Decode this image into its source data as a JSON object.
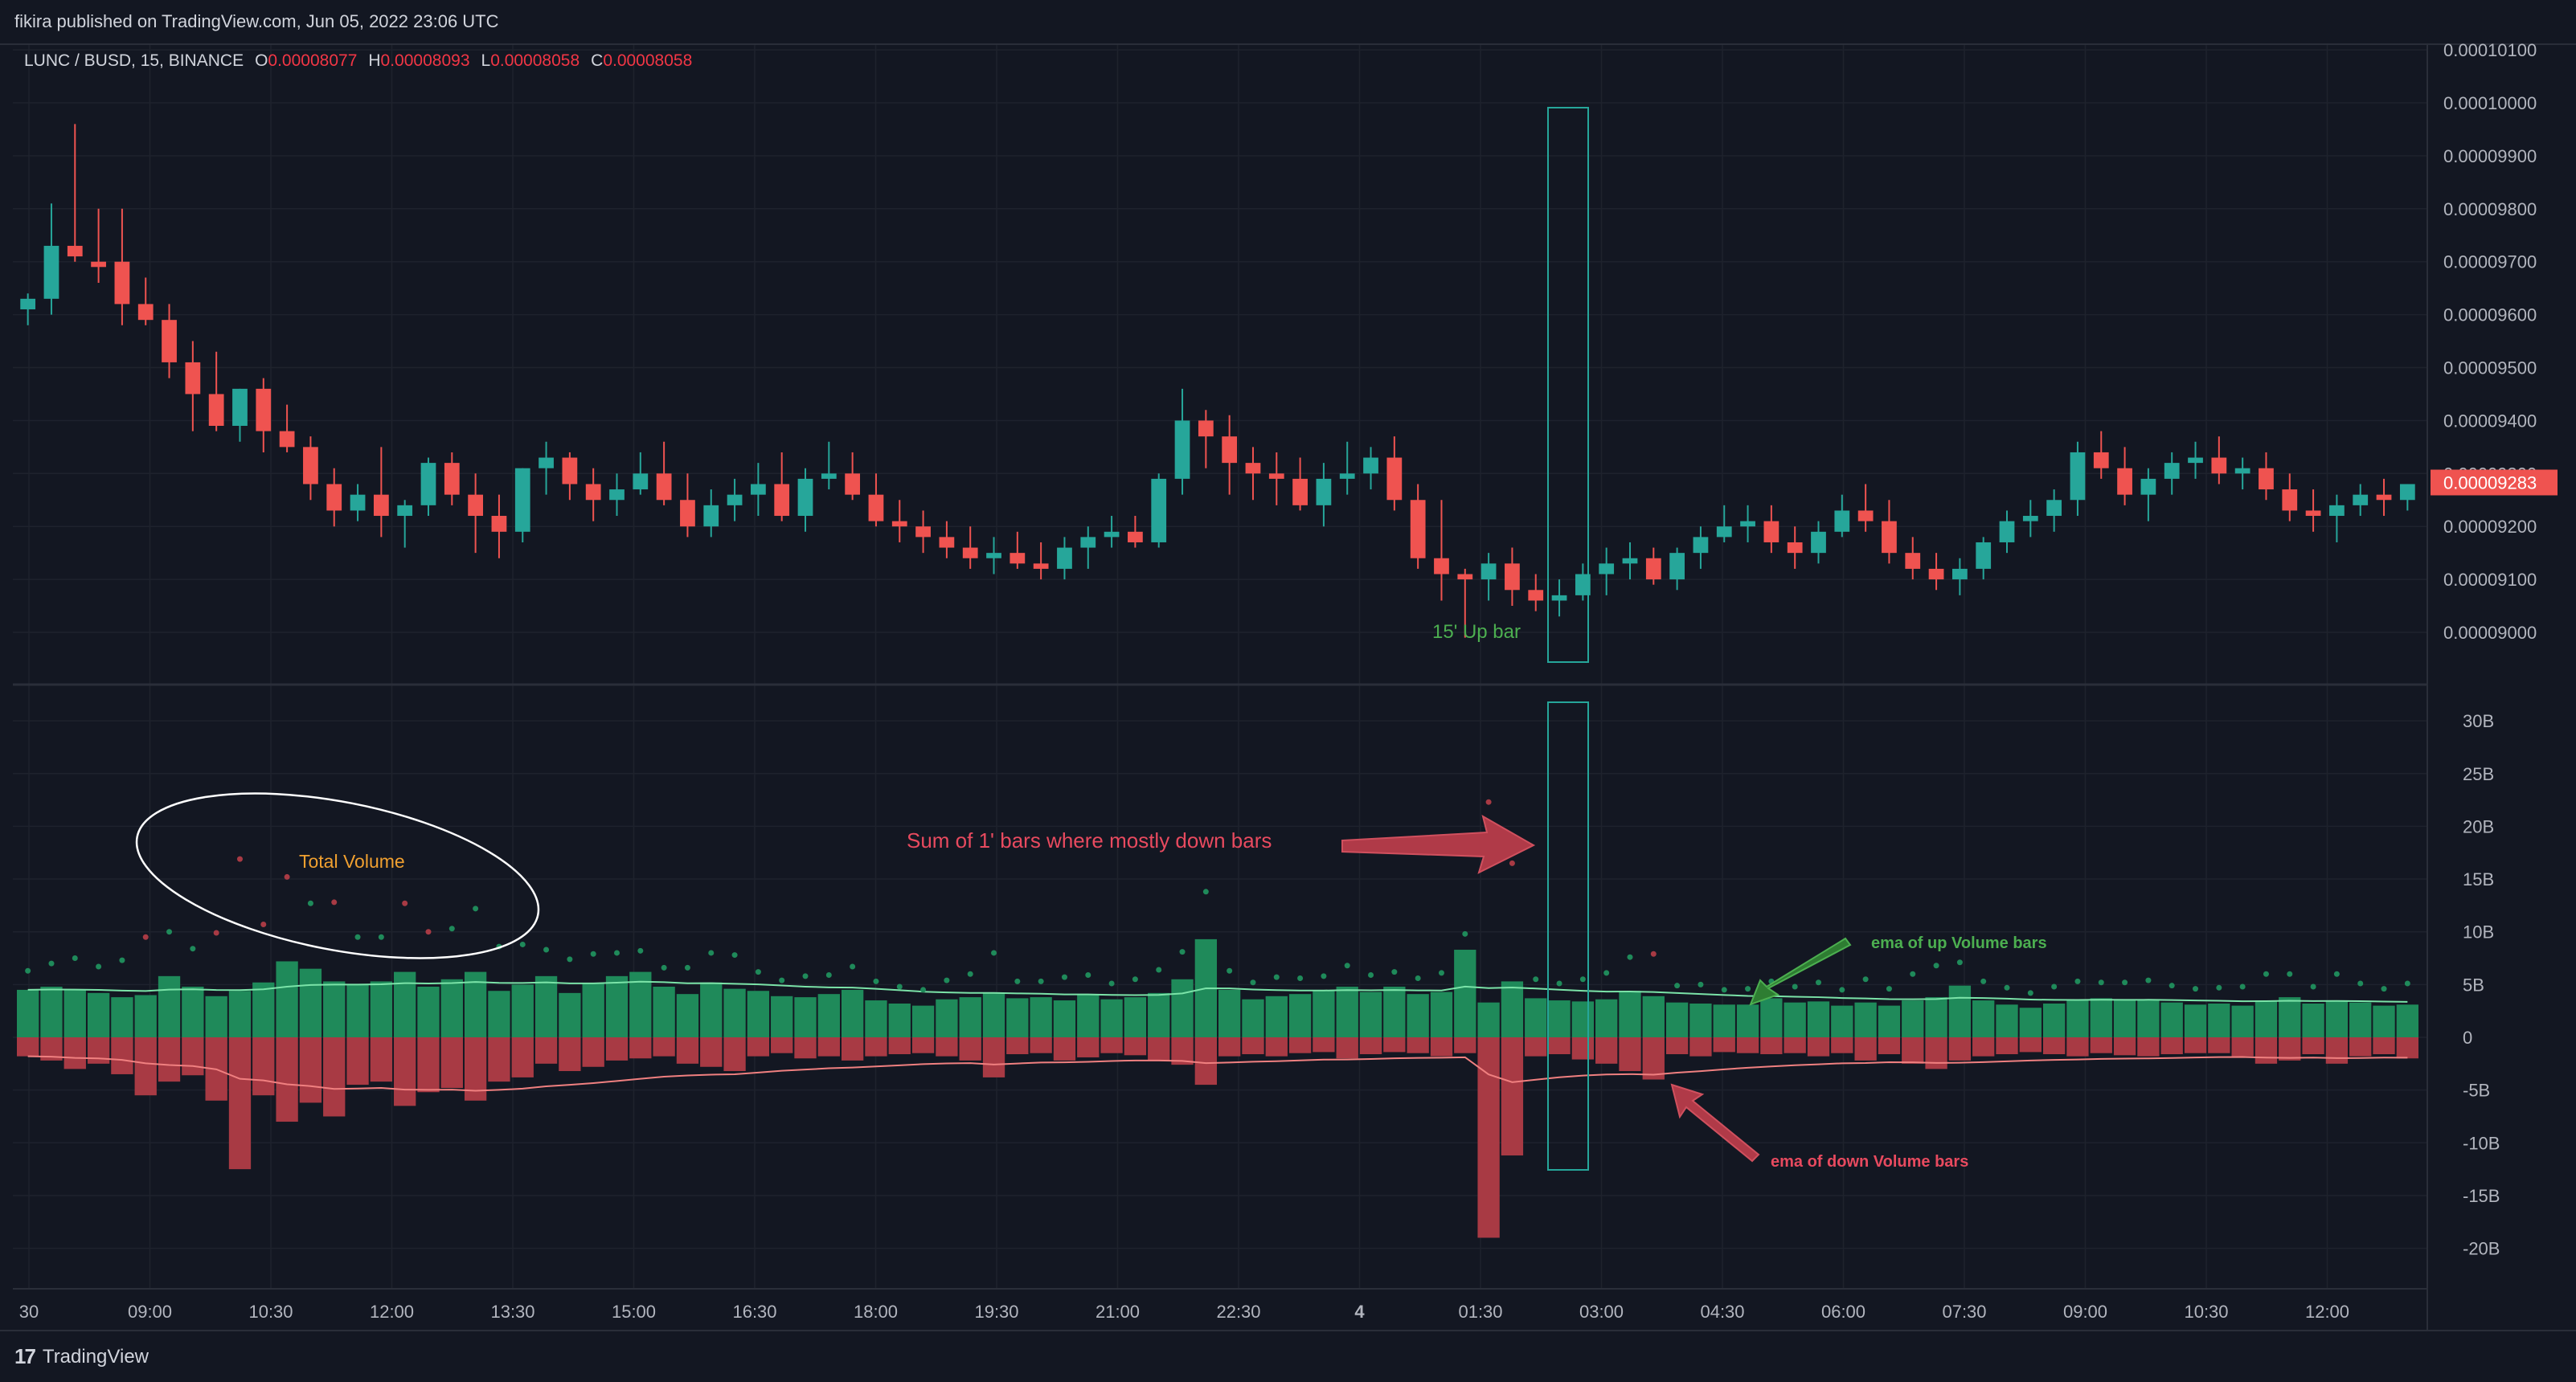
{
  "header": {
    "published": "fikira published on TradingView.com, Jun 05, 2022 23:06 UTC"
  },
  "legend": {
    "symbol": "LUNC / BUSD, 15, BINANCE",
    "o_label": "O",
    "o_value": "0.00008077",
    "h_label": "H",
    "h_value": "0.00008093",
    "l_label": "L",
    "l_value": "0.00008058",
    "c_label": "C",
    "c_value": "0.00008058"
  },
  "footer": {
    "logo": "17",
    "brand": "TradingView"
  },
  "colors": {
    "up": "#26a69a",
    "down": "#ef5350",
    "vol_up": "#1f8a5a",
    "vol_down": "#a83a44",
    "bg": "#131722",
    "grid": "#1e222d"
  },
  "chart_data": [
    {
      "type": "candlestick",
      "title": "LUNC / BUSD, 15, BINANCE",
      "y_ticks": [
        "0.00010100",
        "0.00010000",
        "0.00009900",
        "0.00009800",
        "0.00009700",
        "0.00009600",
        "0.00009500",
        "0.00009400",
        "0.00009300",
        "0.00009200",
        "0.00009100",
        "0.00009000"
      ],
      "ylim": [
        8.91e-05,
        0.0001015
      ],
      "last_price": "0.00009283",
      "annotation_up_bar": "15' Up bar",
      "candles": [
        [
          9.61e-05,
          9.64e-05,
          9.58e-05,
          9.63e-05
        ],
        [
          9.63e-05,
          9.81e-05,
          9.6e-05,
          9.73e-05
        ],
        [
          9.73e-05,
          9.96e-05,
          9.7e-05,
          9.71e-05
        ],
        [
          9.7e-05,
          9.8e-05,
          9.66e-05,
          9.69e-05
        ],
        [
          9.7e-05,
          9.8e-05,
          9.58e-05,
          9.62e-05
        ],
        [
          9.62e-05,
          9.67e-05,
          9.58e-05,
          9.59e-05
        ],
        [
          9.59e-05,
          9.62e-05,
          9.48e-05,
          9.51e-05
        ],
        [
          9.51e-05,
          9.55e-05,
          9.38e-05,
          9.45e-05
        ],
        [
          9.45e-05,
          9.53e-05,
          9.38e-05,
          9.39e-05
        ],
        [
          9.39e-05,
          9.46e-05,
          9.36e-05,
          9.46e-05
        ],
        [
          9.46e-05,
          9.48e-05,
          9.34e-05,
          9.38e-05
        ],
        [
          9.38e-05,
          9.43e-05,
          9.34e-05,
          9.35e-05
        ],
        [
          9.35e-05,
          9.37e-05,
          9.25e-05,
          9.28e-05
        ],
        [
          9.28e-05,
          9.31e-05,
          9.2e-05,
          9.23e-05
        ],
        [
          9.23e-05,
          9.28e-05,
          9.21e-05,
          9.26e-05
        ],
        [
          9.26e-05,
          9.35e-05,
          9.18e-05,
          9.22e-05
        ],
        [
          9.22e-05,
          9.25e-05,
          9.16e-05,
          9.24e-05
        ],
        [
          9.24e-05,
          9.33e-05,
          9.22e-05,
          9.32e-05
        ],
        [
          9.32e-05,
          9.34e-05,
          9.24e-05,
          9.26e-05
        ],
        [
          9.26e-05,
          9.3e-05,
          9.15e-05,
          9.22e-05
        ],
        [
          9.22e-05,
          9.26e-05,
          9.14e-05,
          9.19e-05
        ],
        [
          9.19e-05,
          9.31e-05,
          9.17e-05,
          9.31e-05
        ],
        [
          9.31e-05,
          9.36e-05,
          9.26e-05,
          9.33e-05
        ],
        [
          9.33e-05,
          9.34e-05,
          9.25e-05,
          9.28e-05
        ],
        [
          9.28e-05,
          9.31e-05,
          9.21e-05,
          9.25e-05
        ],
        [
          9.25e-05,
          9.3e-05,
          9.22e-05,
          9.27e-05
        ],
        [
          9.27e-05,
          9.34e-05,
          9.26e-05,
          9.3e-05
        ],
        [
          9.3e-05,
          9.36e-05,
          9.24e-05,
          9.25e-05
        ],
        [
          9.25e-05,
          9.3e-05,
          9.18e-05,
          9.2e-05
        ],
        [
          9.2e-05,
          9.27e-05,
          9.18e-05,
          9.24e-05
        ],
        [
          9.24e-05,
          9.29e-05,
          9.21e-05,
          9.26e-05
        ],
        [
          9.26e-05,
          9.32e-05,
          9.22e-05,
          9.28e-05
        ],
        [
          9.28e-05,
          9.34e-05,
          9.21e-05,
          9.22e-05
        ],
        [
          9.22e-05,
          9.31e-05,
          9.19e-05,
          9.29e-05
        ],
        [
          9.29e-05,
          9.36e-05,
          9.27e-05,
          9.3e-05
        ],
        [
          9.3e-05,
          9.34e-05,
          9.25e-05,
          9.26e-05
        ],
        [
          9.26e-05,
          9.3e-05,
          9.2e-05,
          9.21e-05
        ],
        [
          9.21e-05,
          9.25e-05,
          9.17e-05,
          9.2e-05
        ],
        [
          9.2e-05,
          9.23e-05,
          9.15e-05,
          9.18e-05
        ],
        [
          9.18e-05,
          9.21e-05,
          9.14e-05,
          9.16e-05
        ],
        [
          9.16e-05,
          9.2e-05,
          9.12e-05,
          9.14e-05
        ],
        [
          9.14e-05,
          9.18e-05,
          9.11e-05,
          9.15e-05
        ],
        [
          9.15e-05,
          9.19e-05,
          9.12e-05,
          9.13e-05
        ],
        [
          9.13e-05,
          9.17e-05,
          9.1e-05,
          9.12e-05
        ],
        [
          9.12e-05,
          9.18e-05,
          9.1e-05,
          9.16e-05
        ],
        [
          9.16e-05,
          9.2e-05,
          9.12e-05,
          9.18e-05
        ],
        [
          9.18e-05,
          9.22e-05,
          9.16e-05,
          9.19e-05
        ],
        [
          9.19e-05,
          9.22e-05,
          9.16e-05,
          9.17e-05
        ],
        [
          9.17e-05,
          9.3e-05,
          9.16e-05,
          9.29e-05
        ],
        [
          9.29e-05,
          9.46e-05,
          9.26e-05,
          9.4e-05
        ],
        [
          9.4e-05,
          9.42e-05,
          9.31e-05,
          9.37e-05
        ],
        [
          9.37e-05,
          9.41e-05,
          9.26e-05,
          9.32e-05
        ],
        [
          9.32e-05,
          9.35e-05,
          9.25e-05,
          9.3e-05
        ],
        [
          9.3e-05,
          9.34e-05,
          9.24e-05,
          9.29e-05
        ],
        [
          9.29e-05,
          9.33e-05,
          9.23e-05,
          9.24e-05
        ],
        [
          9.24e-05,
          9.32e-05,
          9.2e-05,
          9.29e-05
        ],
        [
          9.29e-05,
          9.36e-05,
          9.26e-05,
          9.3e-05
        ],
        [
          9.3e-05,
          9.35e-05,
          9.27e-05,
          9.33e-05
        ],
        [
          9.33e-05,
          9.37e-05,
          9.23e-05,
          9.25e-05
        ],
        [
          9.25e-05,
          9.28e-05,
          9.12e-05,
          9.14e-05
        ],
        [
          9.14e-05,
          9.25e-05,
          9.06e-05,
          9.11e-05
        ],
        [
          9.11e-05,
          9.12e-05,
          8.99e-05,
          9.1e-05
        ],
        [
          9.1e-05,
          9.15e-05,
          9.06e-05,
          9.13e-05
        ],
        [
          9.13e-05,
          9.16e-05,
          9.05e-05,
          9.08e-05
        ],
        [
          9.08e-05,
          9.11e-05,
          9.04e-05,
          9.06e-05
        ],
        [
          9.06e-05,
          9.1e-05,
          9.03e-05,
          9.07e-05
        ],
        [
          9.07e-05,
          9.13e-05,
          9.06e-05,
          9.11e-05
        ],
        [
          9.11e-05,
          9.16e-05,
          9.07e-05,
          9.13e-05
        ],
        [
          9.13e-05,
          9.17e-05,
          9.1e-05,
          9.14e-05
        ],
        [
          9.14e-05,
          9.16e-05,
          9.09e-05,
          9.1e-05
        ],
        [
          9.1e-05,
          9.16e-05,
          9.08e-05,
          9.15e-05
        ],
        [
          9.15e-05,
          9.2e-05,
          9.12e-05,
          9.18e-05
        ],
        [
          9.18e-05,
          9.24e-05,
          9.17e-05,
          9.2e-05
        ],
        [
          9.2e-05,
          9.24e-05,
          9.17e-05,
          9.21e-05
        ],
        [
          9.21e-05,
          9.24e-05,
          9.15e-05,
          9.17e-05
        ],
        [
          9.17e-05,
          9.2e-05,
          9.12e-05,
          9.15e-05
        ],
        [
          9.15e-05,
          9.21e-05,
          9.13e-05,
          9.19e-05
        ],
        [
          9.19e-05,
          9.26e-05,
          9.18e-05,
          9.23e-05
        ],
        [
          9.23e-05,
          9.28e-05,
          9.19e-05,
          9.21e-05
        ],
        [
          9.21e-05,
          9.25e-05,
          9.13e-05,
          9.15e-05
        ],
        [
          9.15e-05,
          9.18e-05,
          9.1e-05,
          9.12e-05
        ],
        [
          9.12e-05,
          9.15e-05,
          9.08e-05,
          9.1e-05
        ],
        [
          9.1e-05,
          9.14e-05,
          9.07e-05,
          9.12e-05
        ],
        [
          9.12e-05,
          9.18e-05,
          9.1e-05,
          9.17e-05
        ],
        [
          9.17e-05,
          9.23e-05,
          9.15e-05,
          9.21e-05
        ],
        [
          9.21e-05,
          9.25e-05,
          9.18e-05,
          9.22e-05
        ],
        [
          9.22e-05,
          9.27e-05,
          9.19e-05,
          9.25e-05
        ],
        [
          9.25e-05,
          9.36e-05,
          9.22e-05,
          9.34e-05
        ],
        [
          9.34e-05,
          9.38e-05,
          9.29e-05,
          9.31e-05
        ],
        [
          9.31e-05,
          9.35e-05,
          9.24e-05,
          9.26e-05
        ],
        [
          9.26e-05,
          9.31e-05,
          9.21e-05,
          9.29e-05
        ],
        [
          9.29e-05,
          9.34e-05,
          9.26e-05,
          9.32e-05
        ],
        [
          9.32e-05,
          9.36e-05,
          9.29e-05,
          9.33e-05
        ],
        [
          9.33e-05,
          9.37e-05,
          9.28e-05,
          9.3e-05
        ],
        [
          9.3e-05,
          9.33e-05,
          9.27e-05,
          9.31e-05
        ],
        [
          9.31e-05,
          9.34e-05,
          9.25e-05,
          9.27e-05
        ],
        [
          9.27e-05,
          9.3e-05,
          9.21e-05,
          9.23e-05
        ],
        [
          9.23e-05,
          9.27e-05,
          9.19e-05,
          9.22e-05
        ],
        [
          9.22e-05,
          9.26e-05,
          9.17e-05,
          9.24e-05
        ],
        [
          9.24e-05,
          9.28e-05,
          9.22e-05,
          9.26e-05
        ],
        [
          9.26e-05,
          9.29e-05,
          9.22e-05,
          9.25e-05
        ],
        [
          9.25e-05,
          9.28e-05,
          9.23e-05,
          9.28e-05
        ]
      ]
    },
    {
      "type": "bar",
      "title": "",
      "y_ticks": [
        "30B",
        "25B",
        "20B",
        "15B",
        "10B",
        "5B",
        "0",
        "-5B",
        "-10B",
        "-15B",
        "-20B"
      ],
      "ylim": [
        -23,
        31
      ],
      "up_volume": [
        4.5,
        4.8,
        4.5,
        4.2,
        3.8,
        4.0,
        5.8,
        4.8,
        3.9,
        4.4,
        5.2,
        7.2,
        6.5,
        5.3,
        5.0,
        5.3,
        6.2,
        4.8,
        5.5,
        6.2,
        4.4,
        5.0,
        5.8,
        4.2,
        5.1,
        5.8,
        6.2,
        4.8,
        4.1,
        5.2,
        4.6,
        4.4,
        3.9,
        3.8,
        4.1,
        4.5,
        3.5,
        3.2,
        3.0,
        3.6,
        3.8,
        4.2,
        3.7,
        3.8,
        3.5,
        4.0,
        3.6,
        3.8,
        4.2,
        5.5,
        9.3,
        4.5,
        3.6,
        3.9,
        4.1,
        4.4,
        4.8,
        4.3,
        4.8,
        4.1,
        4.3,
        8.3,
        3.3,
        5.3,
        3.7,
        3.5,
        3.4,
        3.6,
        4.4,
        3.9,
        3.3,
        3.2,
        3.1,
        3.1,
        3.7,
        3.3,
        3.4,
        3.0,
        3.3,
        3.0,
        3.5,
        3.8,
        4.9,
        3.5,
        3.1,
        2.8,
        3.2,
        3.5,
        3.7,
        3.5,
        3.6,
        3.3,
        3.1,
        3.2,
        3.0,
        3.5,
        3.8,
        3.2,
        3.5,
        3.3,
        3.0,
        3.1
      ],
      "down_volume": [
        -1.8,
        -2.2,
        -3.0,
        -2.5,
        -3.5,
        -5.5,
        -4.2,
        -3.6,
        -6.0,
        -12.5,
        -5.5,
        -8.0,
        -6.2,
        -7.5,
        -4.5,
        -4.2,
        -6.5,
        -5.2,
        -4.8,
        -6.0,
        -4.2,
        -3.8,
        -2.5,
        -3.2,
        -2.8,
        -2.2,
        -2.0,
        -1.8,
        -2.5,
        -2.8,
        -3.2,
        -1.8,
        -1.5,
        -2.0,
        -1.8,
        -2.2,
        -1.8,
        -1.6,
        -1.5,
        -1.8,
        -2.2,
        -3.8,
        -1.6,
        -1.5,
        -2.2,
        -1.9,
        -1.5,
        -1.7,
        -2.2,
        -2.6,
        -4.5,
        -1.8,
        -1.6,
        -1.8,
        -1.5,
        -1.4,
        -2.0,
        -1.6,
        -1.4,
        -1.5,
        -1.8,
        -1.5,
        -19.0,
        -11.2,
        -1.8,
        -1.6,
        -2.1,
        -2.5,
        -3.2,
        -4.0,
        -1.6,
        -1.8,
        -1.4,
        -1.5,
        -1.6,
        -1.5,
        -1.8,
        -1.5,
        -2.2,
        -1.6,
        -2.5,
        -3.0,
        -2.2,
        -1.8,
        -1.6,
        -1.4,
        -1.6,
        -1.8,
        -1.5,
        -1.7,
        -1.8,
        -1.6,
        -1.5,
        -1.5,
        -1.8,
        -2.5,
        -2.2,
        -1.6,
        -2.5,
        -1.8,
        -1.6,
        -2.0
      ],
      "annotations": {
        "total_volume": "Total Volume",
        "sum_label": "Sum of 1' bars where mostly down bars",
        "ema_up": "ema of up Volume bars",
        "ema_down": "ema of down Volume bars"
      }
    }
  ],
  "x_axis": {
    "labels": [
      "30",
      "09:00",
      "10:30",
      "12:00",
      "13:30",
      "15:00",
      "16:30",
      "18:00",
      "19:30",
      "21:00",
      "22:30",
      "4",
      "01:30",
      "03:00",
      "04:30",
      "06:00",
      "07:30",
      "09:00",
      "10:30",
      "12:00"
    ]
  }
}
